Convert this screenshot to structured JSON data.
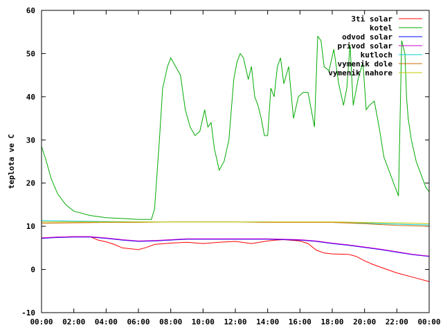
{
  "chart_data": {
    "type": "line",
    "title": "",
    "xlabel": "",
    "ylabel": "teplota ve C",
    "xlim": [
      0,
      24
    ],
    "ylim": [
      -10,
      60
    ],
    "xticks": [
      0,
      2,
      4,
      6,
      8,
      10,
      12,
      14,
      16,
      18,
      20,
      22,
      24
    ],
    "xtick_labels": [
      "00:00",
      "02:00",
      "04:00",
      "06:00",
      "08:00",
      "10:00",
      "12:00",
      "14:00",
      "16:00",
      "18:00",
      "20:00",
      "22:00",
      "00:00"
    ],
    "yticks": [
      -10,
      0,
      10,
      20,
      30,
      40,
      50,
      60
    ],
    "ytick_labels": [
      "-10",
      "0",
      "10",
      "20",
      "30",
      "40",
      "50",
      "60"
    ],
    "grid": false,
    "legend_position": "top-right",
    "series": [
      {
        "name": "3ti solar",
        "color": "#ff0000",
        "x": [
          0,
          1,
          2,
          3,
          3.5,
          4,
          4.5,
          5,
          5.5,
          6,
          6.5,
          7,
          8,
          9,
          10,
          11,
          12,
          13,
          14,
          14.5,
          15,
          16,
          16.5,
          17,
          17.5,
          18,
          19,
          19.5,
          20,
          20.5,
          21,
          22,
          23,
          24
        ],
        "y": [
          7.3,
          7.5,
          7.6,
          7.6,
          6.8,
          6.4,
          5.8,
          5.0,
          4.8,
          4.6,
          5.1,
          5.8,
          6.1,
          6.3,
          6.0,
          6.3,
          6.5,
          6.0,
          6.6,
          6.8,
          6.9,
          6.6,
          6.0,
          4.5,
          3.8,
          3.6,
          3.5,
          3.0,
          2.0,
          1.2,
          0.5,
          -0.8,
          -1.8,
          -2.8
        ]
      },
      {
        "name": "kotel",
        "color": "#00aa00",
        "x": [
          0,
          0.3,
          0.6,
          1,
          1.5,
          2,
          3,
          4,
          5,
          6,
          6.8,
          7.0,
          7.3,
          7.5,
          7.8,
          8.0,
          8.3,
          8.6,
          8.9,
          9.2,
          9.5,
          9.8,
          10.1,
          10.3,
          10.5,
          10.7,
          11.0,
          11.3,
          11.6,
          11.9,
          12.1,
          12.3,
          12.5,
          12.8,
          13.0,
          13.2,
          13.4,
          13.6,
          13.8,
          14.0,
          14.2,
          14.4,
          14.6,
          14.8,
          15.0,
          15.3,
          15.6,
          15.9,
          16.2,
          16.5,
          16.7,
          16.9,
          17.1,
          17.3,
          17.5,
          17.8,
          18.1,
          18.4,
          18.7,
          18.9,
          19.1,
          19.3,
          19.6,
          19.9,
          20.1,
          20.3,
          20.6,
          20.9,
          21.2,
          21.5,
          21.8,
          22.1,
          22.3,
          22.5,
          22.6,
          22.7,
          22.9,
          23.2,
          23.5,
          23.8,
          24
        ],
        "y": [
          28.5,
          25,
          21,
          17.5,
          15,
          13.5,
          12.5,
          12.0,
          11.8,
          11.6,
          11.6,
          14,
          30,
          42,
          47,
          49,
          47,
          45,
          37,
          33,
          31,
          32,
          37,
          33,
          34,
          28,
          23,
          25,
          30,
          44,
          48,
          50,
          49,
          44,
          47,
          40,
          38,
          35,
          31,
          31,
          42,
          40,
          47,
          49,
          43,
          47,
          35,
          40,
          41,
          41,
          37,
          33,
          54,
          53,
          47,
          46,
          51,
          43,
          38,
          42,
          52,
          38,
          44,
          48,
          37,
          38,
          39,
          33,
          26,
          23,
          20,
          17,
          53,
          50,
          40,
          35,
          30,
          25,
          22,
          19,
          18
        ]
      },
      {
        "name": "odvod solar",
        "color": "#0000ff",
        "x": [
          0,
          1,
          2,
          3,
          4,
          5,
          6,
          7,
          8,
          9,
          10,
          11,
          12,
          13,
          14,
          15,
          16,
          17,
          18,
          19,
          20,
          21,
          22,
          23,
          24
        ],
        "y": [
          7.2,
          7.4,
          7.5,
          7.5,
          7.2,
          6.8,
          6.5,
          6.6,
          6.8,
          7.0,
          7.0,
          7.0,
          7.0,
          7.0,
          7.0,
          6.9,
          6.8,
          6.5,
          6.0,
          5.6,
          5.1,
          4.6,
          4.0,
          3.4,
          3.0
        ]
      },
      {
        "name": "privod solar",
        "color": "#cc00cc",
        "x": [
          0,
          1,
          2,
          3,
          4,
          5,
          6,
          7,
          8,
          9,
          10,
          11,
          12,
          13,
          14,
          15,
          16,
          17,
          18,
          19,
          20,
          21,
          22,
          23,
          24
        ],
        "y": [
          7.3,
          7.5,
          7.6,
          7.6,
          7.3,
          6.9,
          6.6,
          6.7,
          6.9,
          7.1,
          7.1,
          7.1,
          7.1,
          7.1,
          7.1,
          7.0,
          6.9,
          6.6,
          6.1,
          5.7,
          5.2,
          4.7,
          4.1,
          3.5,
          3.1
        ]
      },
      {
        "name": "kutloch",
        "color": "#00cccc",
        "x": [
          0,
          2,
          4,
          6,
          8,
          10,
          12,
          14,
          16,
          18,
          20,
          22,
          24
        ],
        "y": [
          11.3,
          11.2,
          11.1,
          11.0,
          11.0,
          11.0,
          11.0,
          11.0,
          10.9,
          10.9,
          10.7,
          10.5,
          10.3
        ]
      },
      {
        "name": "vymenik dole",
        "color": "#cc6600",
        "x": [
          0,
          2,
          4,
          6,
          8,
          10,
          12,
          14,
          16,
          18,
          20,
          22,
          24
        ],
        "y": [
          10.7,
          10.8,
          10.9,
          10.9,
          11.0,
          11.0,
          11.0,
          10.9,
          10.9,
          10.9,
          10.6,
          10.2,
          10.0
        ]
      },
      {
        "name": "vymenik nahore",
        "color": "#c8c800",
        "x": [
          0,
          2,
          4,
          6,
          8,
          10,
          12,
          14,
          16,
          18,
          20,
          22,
          24
        ],
        "y": [
          11.0,
          11.0,
          11.0,
          11.0,
          11.0,
          11.0,
          11.0,
          11.0,
          11.0,
          11.0,
          10.9,
          10.8,
          10.6
        ]
      }
    ]
  }
}
